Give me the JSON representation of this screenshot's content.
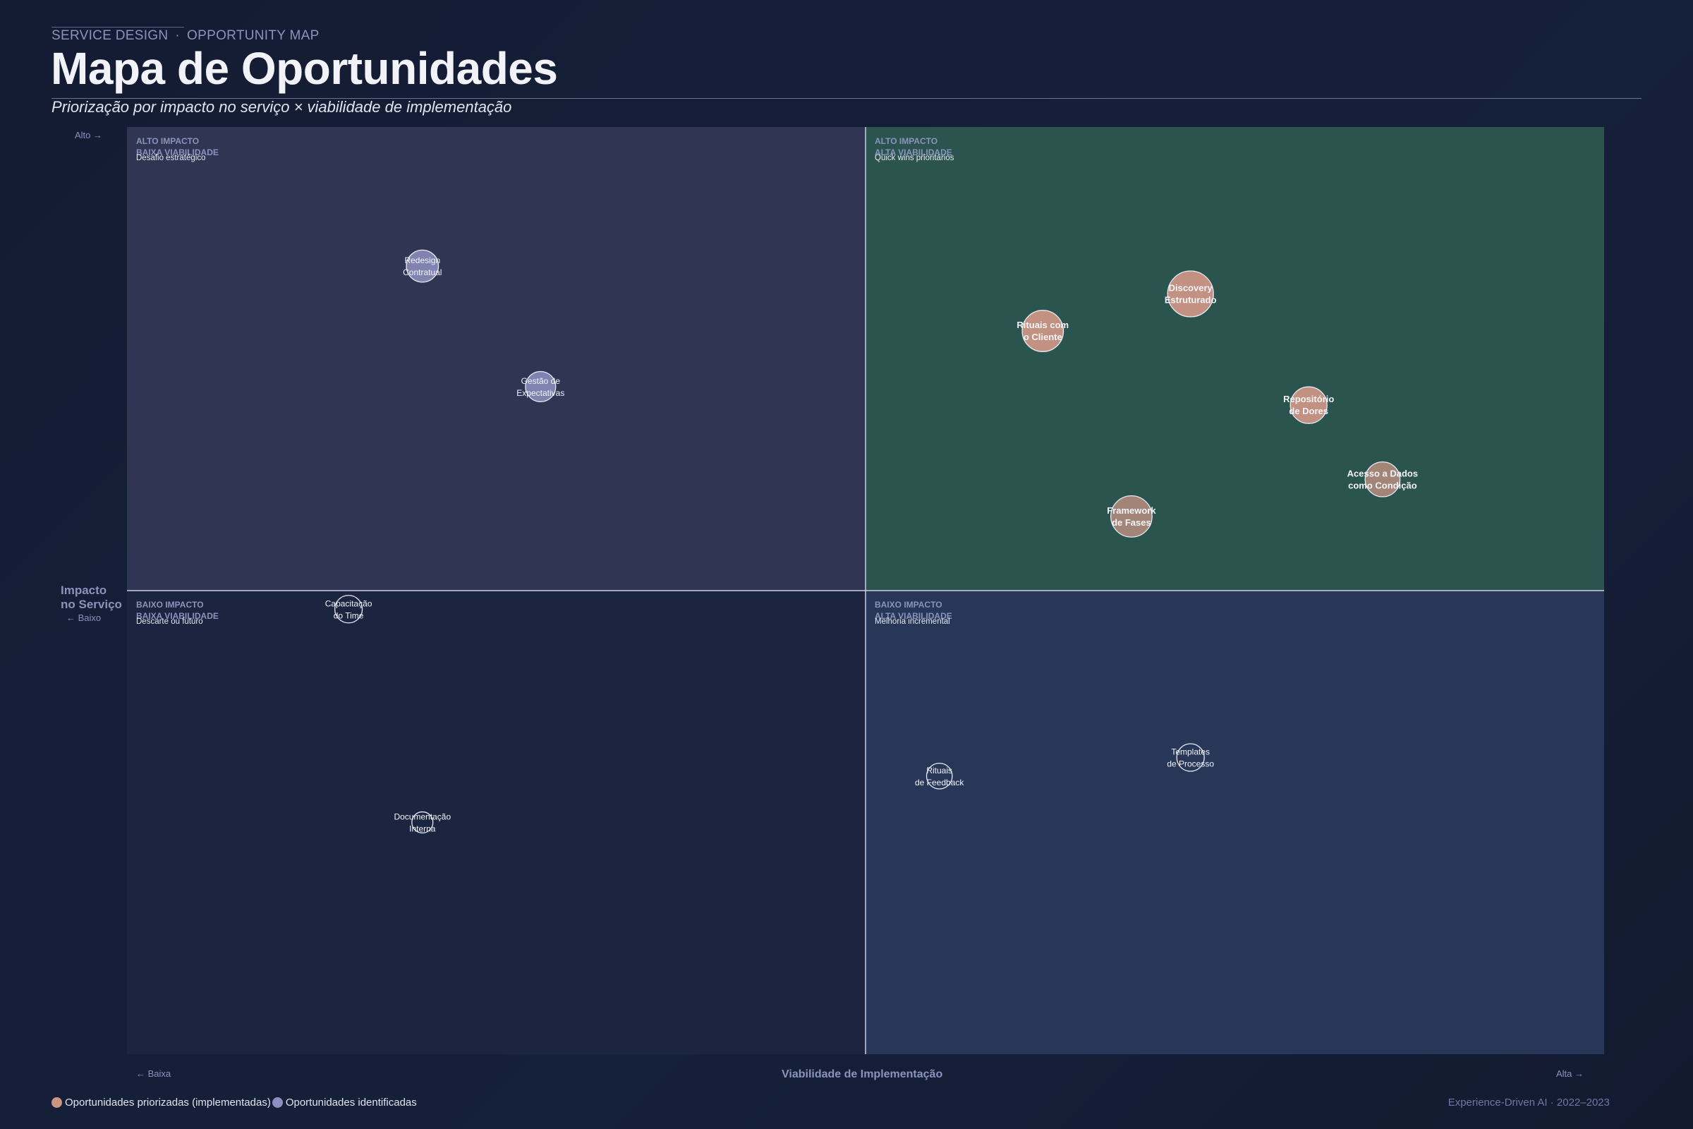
{
  "header": {
    "eyebrow_left": "SERVICE DESIGN",
    "eyebrow_sep": "·",
    "eyebrow_right": "OPPORTUNITY MAP",
    "title": "Mapa de Oportunidades",
    "subtitle": "Priorização por impacto no serviço × viabilidade de implementação"
  },
  "axes": {
    "y_title_line1": "Impacto",
    "y_title_line2": "no Serviço",
    "y_low": "← Baixo",
    "y_high": "Alto →",
    "x_title": "Viabilidade de Implementação",
    "x_low": "← Baixa",
    "x_high": "Alta →"
  },
  "legend": {
    "prioritized": "Oportunidades priorizadas (implementadas)",
    "identified": "Oportunidades identificadas"
  },
  "footer": "Experience-Driven AI · 2022–2023",
  "colors": {
    "q_top_left": "#303554",
    "q_top_right": "#2b544f",
    "q_bottom_left": "#1b2540",
    "q_bottom_right": "#283657",
    "prioritized": "#cb9584",
    "identified": "#8e8fc0",
    "divider": "#c9cde0",
    "quad_label": "#8a93bc"
  },
  "chart_data": {
    "type": "scatter",
    "xlabel": "Viabilidade de Implementação",
    "ylabel": "Impacto no Serviço",
    "xlim": [
      0,
      10
    ],
    "ylim": [
      0,
      10
    ],
    "grid": false,
    "legend_position": "bottom-left",
    "quadrants": [
      {
        "id": "top-left",
        "line1": "ALTO IMPACTO",
        "line2": "BAIXA VIABILIDADE",
        "desc": "Desafio estratégico"
      },
      {
        "id": "top-right",
        "line1": "ALTO IMPACTO",
        "line2": "ALTA VIABILIDADE",
        "desc": "Quick wins prioritários"
      },
      {
        "id": "bottom-left",
        "line1": "BAIXO IMPACTO",
        "line2": "BAIXA VIABILIDADE",
        "desc": "Descarte ou futuro"
      },
      {
        "id": "bottom-right",
        "line1": "BAIXO IMPACTO",
        "line2": "ALTA VIABILIDADE",
        "desc": "Melhoria incremental"
      }
    ],
    "series": [
      {
        "name": "Oportunidades priorizadas (implementadas)",
        "group": "prioritized",
        "points": [
          {
            "label": [
              "Discovery",
              "Estruturado"
            ],
            "x": 7.2,
            "y": 8.2,
            "size": 5
          },
          {
            "label": [
              "Rituais com",
              "o Cliente"
            ],
            "x": 6.2,
            "y": 7.8,
            "size": 4.5
          },
          {
            "label": [
              "Repositório",
              "de Dores"
            ],
            "x": 8.0,
            "y": 7.0,
            "size": 4
          },
          {
            "label": [
              "Acesso a Dados",
              "como Condição"
            ],
            "x": 8.5,
            "y": 6.2,
            "size": 3.8
          },
          {
            "label": [
              "Framework",
              "de Fases"
            ],
            "x": 6.8,
            "y": 5.8,
            "size": 4.5
          }
        ]
      },
      {
        "name": "Oportunidades identificadas",
        "group": "identified",
        "points": [
          {
            "label": [
              "Redesign",
              "Contratual"
            ],
            "x": 2.0,
            "y": 8.5,
            "size": 3.5
          },
          {
            "label": [
              "Gestão de",
              "Expectativas"
            ],
            "x": 2.8,
            "y": 7.2,
            "size": 3.3
          },
          {
            "label": [
              "Capacitação",
              "do Time"
            ],
            "x": 1.5,
            "y": 4.8,
            "size": 3
          },
          {
            "label": [
              "Documentação",
              "Interna"
            ],
            "x": 2.0,
            "y": 2.5,
            "size": 2.3
          },
          {
            "label": [
              "Rituais",
              "de Feedback"
            ],
            "x": 5.5,
            "y": 3.0,
            "size": 2.8
          },
          {
            "label": [
              "Templates",
              "de Processo"
            ],
            "x": 7.2,
            "y": 3.2,
            "size": 3
          }
        ]
      }
    ]
  }
}
